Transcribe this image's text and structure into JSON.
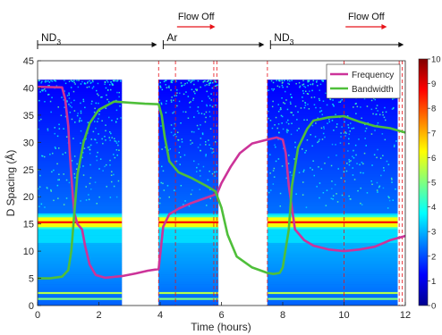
{
  "chart_data": {
    "type": "line",
    "xlabel": "Time (hours)",
    "ylabel": "D Spacing (Å)",
    "xlim": [
      0,
      12
    ],
    "ylim": [
      0,
      45
    ],
    "xticks": [
      "0",
      "2",
      "4",
      "6",
      "8",
      "10",
      "12"
    ],
    "yticks": [
      "0",
      "5",
      "10",
      "15",
      "20",
      "25",
      "30",
      "35",
      "40",
      "45"
    ],
    "grid": false,
    "legend_position": "top-right",
    "colorbar": {
      "min": 0,
      "max": 10,
      "ticks": [
        "0",
        "1",
        "2",
        "3",
        "4",
        "5",
        "6",
        "7",
        "8",
        "9",
        "10"
      ],
      "colormap": "jet"
    },
    "colors": {
      "frequency": "#cc3399",
      "bandwidth": "#4fbf3a",
      "annotation_arrow": "#e8141a",
      "dashed_line": "#e8141a"
    },
    "heatmap_blocks": [
      {
        "x_start": 0.0,
        "x_end": 2.75,
        "y_max": 41.5
      },
      {
        "x_start": 3.95,
        "x_end": 5.9,
        "y_max": 41.5
      },
      {
        "x_start": 7.5,
        "x_end": 11.75,
        "y_max": 41.5
      }
    ],
    "heatmap_bright_band_d_spacing": 15.3,
    "gas_phases": [
      {
        "label": "ND",
        "subscript": "3",
        "x_start": 0.0,
        "x_end": 3.9
      },
      {
        "label": "Ar",
        "subscript": "",
        "x_start": 4.1,
        "x_end": 7.4
      },
      {
        "label": "ND",
        "subscript": "3",
        "x_start": 7.6,
        "x_end": 11.95
      }
    ],
    "flow_off_markers": [
      {
        "label": "Flow Off",
        "x_start": 4.55,
        "x_end": 5.8
      },
      {
        "label": "Flow Off",
        "x_start": 10.05,
        "x_end": 11.4
      }
    ],
    "dashed_lines_x": [
      3.95,
      4.5,
      5.75,
      5.85,
      7.5,
      10.0,
      11.8,
      11.9
    ],
    "series": [
      {
        "name": "Frequency",
        "x": [
          0,
          0.8,
          0.9,
          1.0,
          1.05,
          1.1,
          1.15,
          1.2,
          1.3,
          1.45,
          1.55,
          1.7,
          1.9,
          2.2,
          2.75,
          3.2,
          3.6,
          3.95,
          4.1,
          4.3,
          4.6,
          5.0,
          5.5,
          5.85,
          6.0,
          6.3,
          6.6,
          7.0,
          7.5,
          7.8,
          8.0,
          8.1,
          8.2,
          8.4,
          8.7,
          9.0,
          9.5,
          10.0,
          10.5,
          11.0,
          11.5,
          12.0
        ],
        "y": [
          40.2,
          40.1,
          38.0,
          33.0,
          28.0,
          24.0,
          20.0,
          17.0,
          15.0,
          14.0,
          11.0,
          7.5,
          5.6,
          5.1,
          5.4,
          5.9,
          6.4,
          6.7,
          14.5,
          16.8,
          17.8,
          18.8,
          19.8,
          20.5,
          22.5,
          25.5,
          28.0,
          29.8,
          30.5,
          30.9,
          30.5,
          28.0,
          22.0,
          14.0,
          12.0,
          11.0,
          10.3,
          10.0,
          10.3,
          10.8,
          12.0,
          12.8
        ]
      },
      {
        "name": "Bandwidth",
        "x": [
          0,
          0.4,
          0.8,
          1.0,
          1.1,
          1.2,
          1.3,
          1.5,
          1.7,
          2.0,
          2.5,
          3.0,
          3.5,
          3.95,
          4.05,
          4.15,
          4.3,
          4.6,
          5.0,
          5.5,
          5.8,
          6.0,
          6.2,
          6.5,
          7.0,
          7.5,
          7.7,
          7.9,
          8.0,
          8.2,
          8.3,
          8.5,
          8.8,
          9.0,
          9.5,
          10.0,
          10.5,
          11.0,
          11.5,
          12.0
        ],
        "y": [
          5.0,
          5.0,
          5.3,
          6.5,
          10.0,
          17.0,
          24.0,
          30.0,
          33.5,
          36.0,
          37.5,
          37.3,
          37.1,
          37.0,
          35.0,
          31.0,
          26.5,
          24.5,
          23.5,
          22.0,
          21.0,
          18.0,
          13.0,
          9.0,
          7.0,
          6.0,
          5.8,
          6.0,
          7.0,
          14.0,
          22.0,
          29.0,
          32.5,
          34.0,
          34.6,
          34.8,
          33.8,
          33.0,
          32.6,
          31.8
        ]
      }
    ]
  }
}
